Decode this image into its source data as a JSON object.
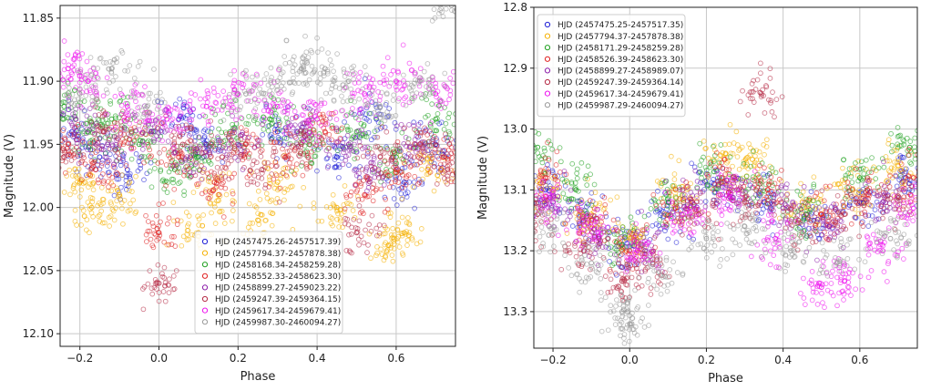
{
  "chart_data": [
    {
      "type": "scatter",
      "xlabel": "Phase",
      "ylabel": "Magnitude (V)",
      "xlim": [
        -0.25,
        0.75
      ],
      "ylim": [
        12.11,
        11.84
      ],
      "y_inverted": true,
      "grid": true,
      "legend_placement": "lower-right",
      "x_ticks": [
        -0.2,
        0.0,
        0.2,
        0.4,
        0.6
      ],
      "x_tick_labels": [
        "−0.2",
        "0.0",
        "0.2",
        "0.4",
        "0.6"
      ],
      "y_ticks": [
        11.85,
        11.9,
        11.95,
        12.0,
        12.05,
        12.1
      ],
      "y_tick_labels": [
        "11.85",
        "11.90",
        "11.95",
        "12.00",
        "12.05",
        "12.10"
      ],
      "series": [
        {
          "name": "HJD (2457475.26-2457517.39)",
          "color": "#1f1fd6",
          "points": [
            [
              -0.22,
              11.94
            ],
            [
              -0.15,
              11.96
            ],
            [
              -0.08,
              11.97
            ],
            [
              0.05,
              11.93
            ],
            [
              0.12,
              11.95
            ],
            [
              0.3,
              11.94
            ],
            [
              0.45,
              11.96
            ],
            [
              0.55,
              11.93
            ],
            [
              0.62,
              11.98
            ],
            [
              0.7,
              11.95
            ]
          ]
        },
        {
          "name": "HJD (2457794.37-2457878.38)",
          "color": "#f5b000",
          "points": [
            [
              -0.2,
              11.98
            ],
            [
              -0.17,
              12.0
            ],
            [
              -0.1,
              11.99
            ],
            [
              0.1,
              12.02
            ],
            [
              0.15,
              11.99
            ],
            [
              0.25,
              12.01
            ],
            [
              0.3,
              11.98
            ],
            [
              0.45,
              12.0
            ],
            [
              0.58,
              12.03
            ],
            [
              0.62,
              12.02
            ],
            [
              0.68,
              11.97
            ]
          ]
        },
        {
          "name": "HJD (2458168.34-2458259.28)",
          "color": "#1ea01e",
          "points": [
            [
              -0.24,
              11.92
            ],
            [
              -0.18,
              11.94
            ],
            [
              -0.12,
              11.93
            ],
            [
              -0.05,
              11.95
            ],
            [
              0.04,
              11.97
            ],
            [
              0.1,
              11.96
            ],
            [
              0.18,
              11.94
            ],
            [
              0.28,
              11.93
            ],
            [
              0.38,
              11.95
            ],
            [
              0.5,
              11.94
            ],
            [
              0.6,
              11.96
            ],
            [
              0.7,
              11.93
            ]
          ]
        },
        {
          "name": "HJD (2458552.33-2458623.30)",
          "color": "#e02020",
          "points": [
            [
              -0.23,
              11.95
            ],
            [
              -0.16,
              11.97
            ],
            [
              -0.07,
              11.94
            ],
            [
              0.0,
              12.02
            ],
            [
              0.05,
              11.96
            ],
            [
              0.14,
              11.98
            ],
            [
              0.22,
              11.95
            ],
            [
              0.32,
              11.96
            ],
            [
              0.42,
              11.94
            ],
            [
              0.52,
              11.99
            ],
            [
              0.6,
              11.97
            ],
            [
              0.72,
              11.96
            ]
          ]
        },
        {
          "name": "HJD (2458899.27-2459023.22)",
          "color": "#8a1aa8",
          "points": [
            [
              -0.21,
              11.93
            ],
            [
              -0.13,
              11.95
            ],
            [
              -0.02,
              11.94
            ],
            [
              0.08,
              11.96
            ],
            [
              0.2,
              11.95
            ],
            [
              0.35,
              11.94
            ],
            [
              0.48,
              11.95
            ],
            [
              0.54,
              11.97
            ],
            [
              0.65,
              11.95
            ]
          ]
        },
        {
          "name": "HJD (2459247.39-2459364.15)",
          "color": "#b52a45",
          "points": [
            [
              -0.24,
              11.96
            ],
            [
              -0.14,
              11.94
            ],
            [
              0.0,
              12.06
            ],
            [
              0.06,
              11.95
            ],
            [
              0.16,
              11.96
            ],
            [
              0.26,
              11.97
            ],
            [
              0.36,
              11.95
            ],
            [
              0.5,
              12.02
            ],
            [
              0.56,
              11.96
            ],
            [
              0.66,
              11.95
            ],
            [
              0.73,
              11.97
            ]
          ]
        },
        {
          "name": "HJD (2459617.34-2459679.41)",
          "color": "#ee10ee",
          "points": [
            [
              -0.23,
              11.89
            ],
            [
              -0.18,
              11.9
            ],
            [
              -0.08,
              11.92
            ],
            [
              0.02,
              11.93
            ],
            [
              0.12,
              11.92
            ],
            [
              0.2,
              11.91
            ],
            [
              0.3,
              11.92
            ],
            [
              0.4,
              11.93
            ],
            [
              0.52,
              11.91
            ],
            [
              0.6,
              11.9
            ],
            [
              0.7,
              11.91
            ]
          ]
        },
        {
          "name": "HJD (2459987.30-2460094.27)",
          "color": "#9a9a9a",
          "points": [
            [
              -0.2,
              11.91
            ],
            [
              -0.12,
              11.89
            ],
            [
              -0.03,
              11.92
            ],
            [
              0.22,
              11.91
            ],
            [
              0.3,
              11.9
            ],
            [
              0.36,
              11.89
            ],
            [
              0.42,
              11.89
            ],
            [
              0.48,
              11.9
            ],
            [
              0.56,
              11.92
            ],
            [
              0.66,
              11.9
            ],
            [
              0.74,
              11.84
            ]
          ]
        }
      ]
    },
    {
      "type": "scatter",
      "xlabel": "Phase",
      "ylabel": "Magnitude (V)",
      "xlim": [
        -0.25,
        0.75
      ],
      "ylim": [
        13.36,
        12.8
      ],
      "y_inverted": true,
      "grid": true,
      "legend_placement": "upper-left",
      "x_ticks": [
        -0.2,
        0.0,
        0.2,
        0.4,
        0.6
      ],
      "x_tick_labels": [
        "−0.2",
        "0.0",
        "0.2",
        "0.4",
        "0.6"
      ],
      "y_ticks": [
        12.8,
        12.9,
        13.0,
        13.1,
        13.2,
        13.3
      ],
      "y_tick_labels": [
        "12.8",
        "12.9",
        "13.0",
        "13.1",
        "13.2",
        "13.3"
      ],
      "series": [
        {
          "name": "HJD (2457475.25-2457517.35)",
          "color": "#1f1fd6",
          "points": [
            [
              -0.22,
              13.1
            ],
            [
              -0.12,
              13.15
            ],
            [
              -0.02,
              13.19
            ],
            [
              0.1,
              13.14
            ],
            [
              0.22,
              13.09
            ],
            [
              0.35,
              13.12
            ],
            [
              0.48,
              13.15
            ],
            [
              0.6,
              13.12
            ],
            [
              0.72,
              13.08
            ]
          ]
        },
        {
          "name": "HJD (2457794.37-2457878.38)",
          "color": "#f5b000",
          "points": [
            [
              -0.23,
              13.1
            ],
            [
              -0.1,
              13.14
            ],
            [
              0.0,
              13.18
            ],
            [
              0.12,
              13.1
            ],
            [
              0.25,
              13.04
            ],
            [
              0.32,
              13.05
            ],
            [
              0.45,
              13.12
            ],
            [
              0.58,
              13.1
            ],
            [
              0.7,
              13.06
            ]
          ]
        },
        {
          "name": "HJD (2458171.29-2458259.28)",
          "color": "#1ea01e",
          "points": [
            [
              -0.24,
              13.03
            ],
            [
              -0.14,
              13.1
            ],
            [
              -0.02,
              13.19
            ],
            [
              0.1,
              13.12
            ],
            [
              0.22,
              13.07
            ],
            [
              0.34,
              13.09
            ],
            [
              0.46,
              13.14
            ],
            [
              0.6,
              13.08
            ],
            [
              0.73,
              13.03
            ]
          ]
        },
        {
          "name": "HJD (2458526.39-2458623.30)",
          "color": "#e02020",
          "points": [
            [
              -0.22,
              13.08
            ],
            [
              -0.1,
              13.15
            ],
            [
              0.0,
              13.2
            ],
            [
              0.12,
              13.13
            ],
            [
              0.24,
              13.08
            ],
            [
              0.36,
              13.1
            ],
            [
              0.5,
              13.14
            ],
            [
              0.62,
              13.1
            ],
            [
              0.74,
              13.08
            ]
          ]
        },
        {
          "name": "HJD (2458899.27-2458989.07)",
          "color": "#8a1aa8",
          "points": [
            [
              -0.2,
              13.12
            ],
            [
              -0.08,
              13.18
            ],
            [
              0.04,
              13.2
            ],
            [
              0.16,
              13.12
            ],
            [
              0.28,
              13.1
            ],
            [
              0.4,
              13.13
            ],
            [
              0.52,
              13.16
            ],
            [
              0.66,
              13.12
            ]
          ]
        },
        {
          "name": "HJD (2459247.39-2459364.14)",
          "color": "#b52a45",
          "points": [
            [
              -0.24,
              13.14
            ],
            [
              -0.12,
              13.2
            ],
            [
              -0.02,
              13.25
            ],
            [
              0.06,
              13.22
            ],
            [
              0.18,
              13.14
            ],
            [
              0.3,
              13.12
            ],
            [
              0.34,
              12.94
            ],
            [
              0.44,
              13.15
            ],
            [
              0.56,
              13.14
            ],
            [
              0.7,
              13.11
            ]
          ]
        },
        {
          "name": "HJD (2459617.34-2459679.41)",
          "color": "#ee10ee",
          "points": [
            [
              -0.22,
              13.11
            ],
            [
              -0.1,
              13.16
            ],
            [
              0.02,
              13.2
            ],
            [
              0.14,
              13.14
            ],
            [
              0.26,
              13.11
            ],
            [
              0.38,
              13.18
            ],
            [
              0.5,
              13.26
            ],
            [
              0.56,
              13.25
            ],
            [
              0.66,
              13.2
            ],
            [
              0.74,
              13.13
            ]
          ]
        },
        {
          "name": "HJD (2459987.29-2460094.27)",
          "color": "#9a9a9a",
          "points": [
            [
              -0.21,
              13.16
            ],
            [
              -0.1,
              13.22
            ],
            [
              -0.02,
              13.3
            ],
            [
              0.0,
              13.32
            ],
            [
              0.08,
              13.24
            ],
            [
              0.2,
              13.18
            ],
            [
              0.3,
              13.16
            ],
            [
              0.42,
              13.2
            ],
            [
              0.54,
              13.22
            ],
            [
              0.68,
              13.18
            ]
          ]
        }
      ]
    }
  ]
}
